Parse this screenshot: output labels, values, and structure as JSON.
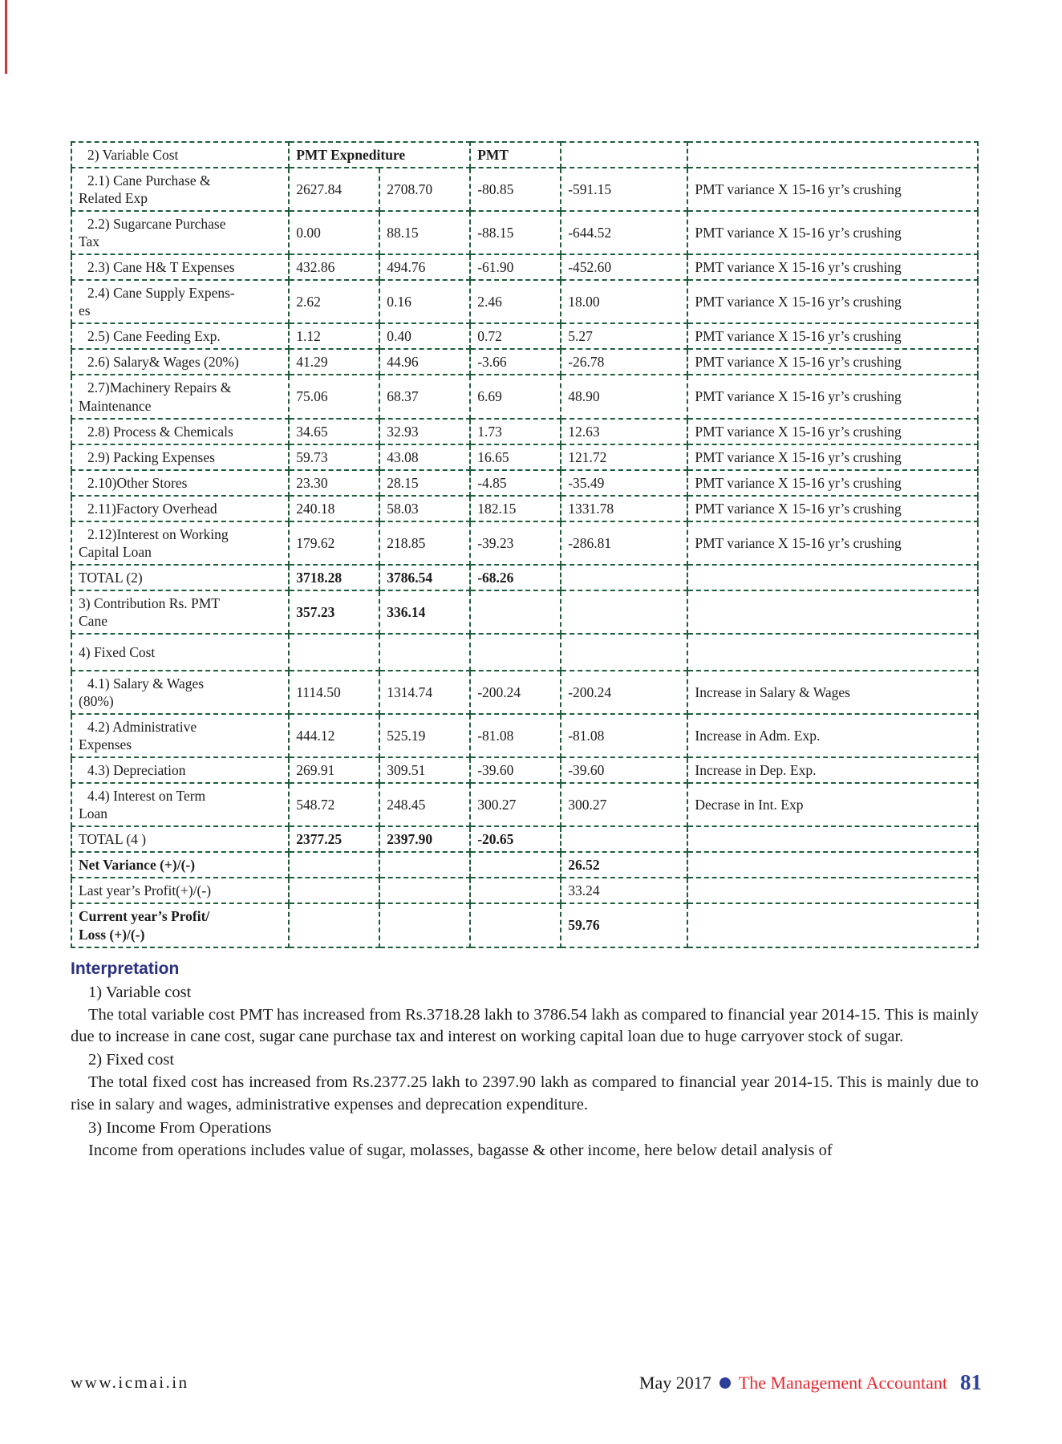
{
  "colors": {
    "table_border_green": "#1f5c3c",
    "heading_navy": "#2a2f80",
    "footer_red": "#e8252c",
    "footer_blue": "#2b3f9a"
  },
  "table": {
    "header": {
      "label": "2) Variable Cost",
      "expenditure": "PMT Expnediture",
      "pmt": "PMT"
    },
    "rows": [
      {
        "label": "2.1) Cane Purchase &\nRelated Exp",
        "c1": "2627.84",
        "c2": "2708.70",
        "c3": "-80.85",
        "c4": "-591.15",
        "remark": "PMT variance X 15-16 yr’s crushing",
        "indent": true
      },
      {
        "label": "2.2) Sugarcane Purchase\nTax",
        "c1": "0.00",
        "c2": "88.15",
        "c3": "-88.15",
        "c4": "-644.52",
        "remark": "PMT variance X 15-16 yr’s crushing",
        "indent": true
      },
      {
        "label": "2.3) Cane H& T Expenses",
        "c1": "432.86",
        "c2": "494.76",
        "c3": "-61.90",
        "c4": "-452.60",
        "remark": "PMT variance X 15-16 yr’s crushing",
        "indent": true
      },
      {
        "label": "2.4) Cane Supply Expens-\nes",
        "c1": "2.62",
        "c2": "0.16",
        "c3": "2.46",
        "c4": "18.00",
        "remark": "PMT variance X 15-16 yr’s crushing",
        "indent": true
      },
      {
        "label": "2.5) Cane Feeding Exp.",
        "c1": "1.12",
        "c2": "0.40",
        "c3": "0.72",
        "c4": "5.27",
        "remark": "PMT variance X 15-16 yr’s crushing",
        "indent": true
      },
      {
        "label": "2.6) Salary& Wages (20%)",
        "c1": "41.29",
        "c2": "44.96",
        "c3": "-3.66",
        "c4": "-26.78",
        "remark": "PMT variance X 15-16 yr’s crushing",
        "indent": true
      },
      {
        "label": "2.7)Machinery Repairs &\nMaintenance",
        "c1": "75.06",
        "c2": "68.37",
        "c3": "6.69",
        "c4": "48.90",
        "remark": "PMT variance X 15-16 yr’s crushing",
        "indent": true
      },
      {
        "label": "2.8)  Process & Chemicals",
        "c1": "34.65",
        "c2": "32.93",
        "c3": "1.73",
        "c4": "12.63",
        "remark": "PMT variance X 15-16 yr’s crushing",
        "indent": true
      },
      {
        "label": "2.9) Packing Expenses",
        "c1": "59.73",
        "c2": "43.08",
        "c3": "16.65",
        "c4": "121.72",
        "remark": "PMT variance X 15-16 yr’s crushing",
        "indent": true
      },
      {
        "label": "2.10)Other Stores",
        "c1": "23.30",
        "c2": "28.15",
        "c3": "-4.85",
        "c4": "-35.49",
        "remark": "PMT variance X 15-16 yr’s crushing",
        "indent": true
      },
      {
        "label": "2.11)Factory Overhead",
        "c1": "240.18",
        "c2": "58.03",
        "c3": "182.15",
        "c4": "1331.78",
        "remark": "PMT variance X 15-16 yr’s crushing",
        "indent": true
      },
      {
        "label": "2.12)Interest on Working\nCapital Loan",
        "c1": "179.62",
        "c2": "218.85",
        "c3": "-39.23",
        "c4": "-286.81",
        "remark": "PMT variance X 15-16 yr’s crushing",
        "indent": true
      },
      {
        "label": "TOTAL (2)",
        "c1": "3718.28",
        "c2": "3786.54",
        "c3": "-68.26",
        "c4": "",
        "remark": "",
        "values_bold": true
      },
      {
        "label": "3) Contribution Rs.  PMT\nCane",
        "c1": "357.23",
        "c2": "336.14",
        "c3": "",
        "c4": "",
        "remark": "",
        "values_bold": true
      },
      {
        "label": "4) Fixed Cost",
        "c1": "",
        "c2": "",
        "c3": "",
        "c4": "",
        "remark": "",
        "tall": true
      },
      {
        "label": "4.1) Salary & Wages\n(80%)",
        "c1": "1114.50",
        "c2": "1314.74",
        "c3": "-200.24",
        "c4": "-200.24",
        "remark": "Increase in Salary & Wages",
        "indent": true
      },
      {
        "label": "4.2) Administrative\nExpenses",
        "c1": "444.12",
        "c2": "525.19",
        "c3": "-81.08",
        "c4": "-81.08",
        "remark": "Increase in Adm. Exp.",
        "indent": true
      },
      {
        "label": "4.3) Depreciation",
        "c1": "269.91",
        "c2": "309.51",
        "c3": "-39.60",
        "c4": "-39.60",
        "remark": "Increase in Dep. Exp.",
        "indent": true
      },
      {
        "label": "4.4) Interest on Term\nLoan",
        "c1": "548.72",
        "c2": "248.45",
        "c3": "300.27",
        "c4": "300.27",
        "remark": "Decrase in Int. Exp",
        "indent": true
      },
      {
        "label": "TOTAL (4 )",
        "c1": "2377.25",
        "c2": "2397.90",
        "c3": "-20.65",
        "c4": "",
        "remark": "",
        "values_bold": true
      },
      {
        "label": "Net Variance (+)/(-)",
        "c1": "",
        "c2": "",
        "c3": "",
        "c4": "26.52",
        "remark": "",
        "label_bold": true,
        "values_bold": true
      },
      {
        "label": "Last year’s Profit(+)/(-)",
        "c1": "",
        "c2": "",
        "c3": "",
        "c4": "33.24",
        "remark": ""
      },
      {
        "label": "Current year’s Profit/\nLoss (+)/(-)",
        "c1": "",
        "c2": "",
        "c3": "",
        "c4": "59.76",
        "remark": "",
        "label_bold": true,
        "values_bold": true
      }
    ]
  },
  "interpretation": {
    "heading": "Interpretation",
    "items": [
      {
        "title": "1) Variable cost",
        "body": "The total variable cost PMT has increased from Rs.3718.28 lakh to 3786.54 lakh as compared to financial year 2014-15. This is mainly due to increase in cane cost, sugar cane purchase tax and interest on working capital loan due to huge carryover stock of sugar."
      },
      {
        "title": "2) Fixed cost",
        "body": "The total fixed cost has increased from Rs.2377.25 lakh to 2397.90 lakh as compared to financial year 2014-15. This is mainly due to rise in salary and wages, administrative expenses and deprecation expenditure."
      },
      {
        "title": "3) Income From Operations",
        "body": "Income from operations includes value of sugar, molasses, bagasse & other income, here below detail analysis of"
      }
    ]
  },
  "footer": {
    "website": "www.icmai.in",
    "issue": "May 2017",
    "magazine": "The Management Accountant",
    "page_number": "81"
  }
}
